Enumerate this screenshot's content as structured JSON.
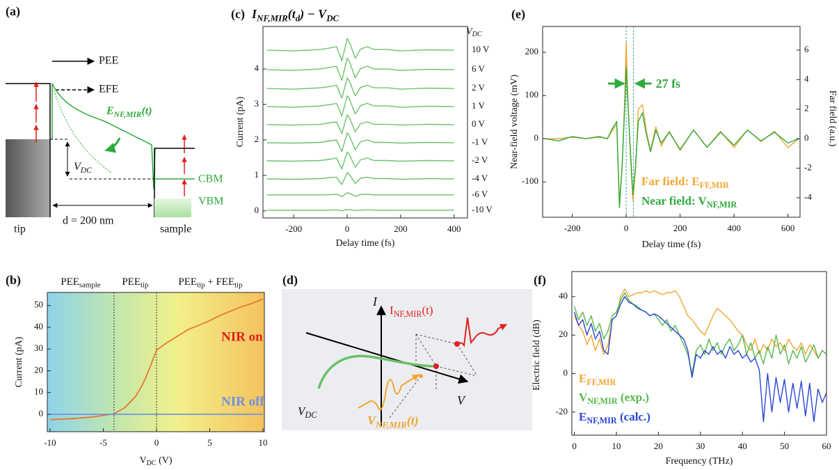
{
  "chart_data": [
    {
      "type": "line",
      "panel_label": "(b)",
      "regions": [
        [
          {
            "text": "PEE"
          },
          {
            "sub": "sample"
          }
        ],
        [
          {
            "text": "PEE"
          },
          {
            "sub": "tip"
          }
        ],
        [
          {
            "text": "PEE"
          },
          {
            "sub": "tip"
          },
          {
            "text": " + FEE"
          },
          {
            "sub": "tip"
          }
        ]
      ],
      "vlines": [
        -4,
        0
      ],
      "xlabel": [
        {
          "text": "V"
        },
        {
          "sub": "DC"
        },
        {
          "text": " (V)"
        }
      ],
      "ylabel": "Current (pA)",
      "x": [
        -10,
        -8,
        -6,
        -5,
        -4,
        -3,
        -2,
        -1.5,
        -1,
        -0.5,
        0,
        1,
        2,
        3,
        4,
        5,
        6,
        7,
        8,
        9,
        10
      ],
      "xlim": [
        -10.26,
        10.13
      ],
      "xticks": [
        -10,
        -5,
        0,
        5,
        10
      ],
      "ylim": [
        -8,
        56
      ],
      "yticks": [
        0,
        10,
        20,
        30,
        40,
        50
      ],
      "series": [
        {
          "name": "NIR on",
          "color": "#e8772e",
          "label_color": "#e0201b",
          "values": [
            -2.5,
            -2,
            -1.2,
            -0.5,
            0.2,
            3,
            8,
            12,
            17,
            23,
            29.5,
            33,
            36,
            39,
            41,
            43,
            45.5,
            47.5,
            49.5,
            51,
            53
          ]
        },
        {
          "name": "NIR off",
          "color": "#6f95e0",
          "label_color": "#6f8fe0",
          "values": [
            0,
            0,
            0,
            0,
            0,
            0,
            0,
            0,
            0,
            0,
            0,
            0,
            0,
            0,
            0,
            0,
            0,
            0,
            0,
            0,
            0
          ]
        }
      ]
    },
    {
      "type": "line",
      "panel_label": "(c)",
      "title": [
        {
          "text": "I"
        },
        {
          "sub": "NF,MIR"
        },
        {
          "text": "(t"
        },
        {
          "sub": "d"
        },
        {
          "text": ")  − V"
        },
        {
          "sub": "DC"
        }
      ],
      "xlabel": "Delay time (fs)",
      "ylabel": "Current (pA)",
      "legend_title": [
        {
          "text": "V"
        },
        {
          "sub": "DC"
        }
      ],
      "x": [
        -300,
        -200,
        -100,
        -60,
        -40,
        -20,
        0,
        10,
        30,
        50,
        75,
        100,
        150,
        200,
        300,
        400
      ],
      "xlim": [
        -315,
        450
      ],
      "xticks": [
        -200,
        0,
        200,
        400
      ],
      "ylim": [
        -0.2,
        5.2
      ],
      "yticks": [
        0,
        1,
        2,
        3,
        4
      ],
      "series": [
        {
          "name": "10 V",
          "color": "#6cc36a",
          "values": [
            4.53,
            4.51,
            4.55,
            4.6,
            4.63,
            4.23,
            4.86,
            4.73,
            4.3,
            4.56,
            4.63,
            4.55,
            4.55,
            4.51,
            4.54,
            4.53
          ]
        },
        {
          "name": "6 V",
          "color": "#6cc36a",
          "values": [
            3.98,
            3.96,
            4.0,
            4.05,
            4.08,
            3.68,
            4.31,
            4.18,
            3.75,
            4.01,
            4.08,
            4.0,
            4.0,
            3.96,
            3.99,
            3.98
          ]
        },
        {
          "name": "2 V",
          "color": "#6cc36a",
          "values": [
            3.45,
            3.43,
            3.47,
            3.51,
            3.54,
            3.18,
            3.75,
            3.63,
            3.24,
            3.48,
            3.54,
            3.47,
            3.47,
            3.43,
            3.46,
            3.45
          ]
        },
        {
          "name": "1 V",
          "color": "#6cc36a",
          "values": [
            2.94,
            2.92,
            2.96,
            3.0,
            3.03,
            2.67,
            3.24,
            3.12,
            2.73,
            2.97,
            3.03,
            2.96,
            2.96,
            2.92,
            2.95,
            2.94
          ]
        },
        {
          "name": "0 V",
          "color": "#6cc36a",
          "values": [
            2.43,
            2.42,
            2.44,
            2.49,
            2.51,
            2.18,
            2.71,
            2.6,
            2.23,
            2.46,
            2.51,
            2.44,
            2.44,
            2.42,
            2.44,
            2.43
          ]
        },
        {
          "name": "-1 V",
          "color": "#6cc36a",
          "values": [
            1.92,
            1.91,
            1.93,
            1.98,
            2.0,
            1.67,
            2.2,
            2.09,
            1.72,
            1.95,
            2.0,
            1.93,
            1.93,
            1.91,
            1.93,
            1.92
          ]
        },
        {
          "name": "-2 V",
          "color": "#6cc36a",
          "values": [
            1.41,
            1.4,
            1.42,
            1.46,
            1.49,
            1.18,
            1.66,
            1.56,
            1.23,
            1.44,
            1.49,
            1.42,
            1.42,
            1.4,
            1.42,
            1.41
          ]
        },
        {
          "name": "-4 V",
          "color": "#6cc36a",
          "values": [
            0.9,
            0.89,
            0.91,
            0.94,
            0.95,
            0.74,
            1.08,
            1.01,
            0.77,
            0.92,
            0.95,
            0.91,
            0.91,
            0.89,
            0.91,
            0.9
          ]
        },
        {
          "name": "-6 V",
          "color": "#6cc36a",
          "values": [
            0.45,
            0.45,
            0.45,
            0.46,
            0.47,
            0.4,
            0.51,
            0.49,
            0.41,
            0.46,
            0.47,
            0.45,
            0.45,
            0.45,
            0.45,
            0.45
          ]
        },
        {
          "name": "-10 V",
          "color": "#6cc36a",
          "values": [
            0.02,
            0.02,
            0.02,
            0.02,
            0.03,
            0,
            0.04,
            0.03,
            0.01,
            0.02,
            0.03,
            0.02,
            0.02,
            0.02,
            0.02,
            0.02
          ]
        }
      ]
    },
    {
      "type": "line",
      "panel_label": "(e)",
      "xlabel": "Delay time (fs)",
      "ylabel": "Near-field voltage (mV)",
      "y2label": "Far field (a.u.)",
      "vlines": [
        0,
        27
      ],
      "annotation": "27 fs",
      "x": [
        -300,
        -250,
        -200,
        -150,
        -100,
        -70,
        -50,
        -35,
        -25,
        -15,
        -5,
        0,
        5,
        15,
        25,
        35,
        45,
        60,
        75,
        90,
        110,
        130,
        160,
        200,
        250,
        300,
        350,
        400,
        450,
        500,
        550,
        600,
        640
      ],
      "xlim": [
        -310,
        645
      ],
      "xticks": [
        -200,
        0,
        200,
        400,
        600
      ],
      "ylim": [
        -182,
        260
      ],
      "yticks": [
        -100,
        0,
        100,
        200
      ],
      "y2lim": [
        -5.32,
        7.6
      ],
      "y2ticks": [
        -4,
        -2,
        0,
        2,
        4,
        6
      ],
      "series": [
        {
          "name": [
            {
              "text": "Far field: "
            },
            {
              "text": "E"
            },
            {
              "sub": "FF,MIR"
            }
          ],
          "color": "#f2a531",
          "axis": "y2",
          "values": [
            0,
            0,
            0.1,
            0,
            0.1,
            0,
            0.6,
            1.0,
            -4.2,
            -2,
            3,
            6.5,
            3.5,
            -1,
            -4.2,
            -2,
            2,
            2.3,
            0.5,
            -0.8,
            0.8,
            -0.5,
            0.5,
            -0.8,
            0.6,
            -0.6,
            0.5,
            -0.6,
            0.6,
            -0.2,
            0.5,
            -0.6,
            0
          ]
        },
        {
          "name": [
            {
              "text": "Near field: "
            },
            {
              "text": "V"
            },
            {
              "sub": "NF,MIR"
            }
          ],
          "color": "#2faa3c",
          "values": [
            0,
            -5,
            5,
            0,
            5,
            0,
            25,
            40,
            -160,
            -60,
            80,
            165,
            100,
            -20,
            -130,
            -60,
            40,
            60,
            10,
            -30,
            20,
            -10,
            15,
            -25,
            20,
            -20,
            15,
            -15,
            20,
            -5,
            15,
            -10,
            0
          ]
        }
      ]
    },
    {
      "type": "line",
      "panel_label": "(f)",
      "xlabel": "Frequency (THz)",
      "ylabel": "Electric field (dB)",
      "x": [
        0,
        1,
        2,
        3,
        4,
        5,
        6,
        7,
        8,
        9,
        10,
        11,
        12,
        13,
        14,
        15,
        16,
        17,
        18,
        19,
        20,
        21,
        22,
        23,
        24,
        25,
        26,
        27,
        28,
        29,
        30,
        31,
        32,
        33,
        34,
        35,
        36,
        37,
        38,
        39,
        40,
        41,
        42,
        43,
        44,
        45,
        46,
        47,
        48,
        49,
        50,
        51,
        52,
        53,
        54,
        55,
        56,
        57,
        58,
        59,
        60
      ],
      "xlim": [
        -0.6,
        60
      ],
      "xticks": [
        0,
        10,
        20,
        30,
        40,
        50,
        60
      ],
      "ylim": [
        -32,
        53
      ],
      "yticks": [
        -20,
        0,
        20,
        40
      ],
      "series": [
        {
          "name": [
            {
              "text": "E"
            },
            {
              "sub": "FF,MIR"
            }
          ],
          "color": "#f2a531",
          "values": [
            30,
            25,
            22,
            15,
            20,
            12,
            18,
            10,
            15,
            28,
            30,
            40,
            44,
            40,
            41,
            42,
            42,
            43,
            42,
            43,
            42,
            41,
            42,
            42,
            43,
            40,
            35,
            30,
            28,
            25,
            22,
            20,
            25,
            30,
            34,
            32,
            30,
            28,
            25,
            22,
            20,
            15,
            12,
            18,
            10,
            15,
            12,
            18,
            14,
            16,
            12,
            18,
            14,
            12,
            16,
            10,
            15,
            12,
            8,
            12,
            10
          ]
        },
        {
          "name": [
            {
              "text": "V"
            },
            {
              "sub": "NF,MIR"
            },
            {
              "text": " (exp.)"
            }
          ],
          "color": "#53b848",
          "values": [
            35,
            28,
            32,
            25,
            30,
            22,
            26,
            18,
            22,
            30,
            32,
            38,
            42,
            38,
            36,
            35,
            33,
            32,
            30,
            31,
            28,
            25,
            28,
            22,
            25,
            20,
            15,
            10,
            0,
            12,
            15,
            10,
            18,
            12,
            16,
            10,
            15,
            18,
            12,
            15,
            20,
            10,
            16,
            8,
            12,
            5,
            14,
            8,
            20,
            10,
            15,
            5,
            12,
            8,
            14,
            6,
            10,
            15,
            8,
            12,
            10
          ]
        },
        {
          "name": [
            {
              "text": "E"
            },
            {
              "sub": "NF,MIR"
            },
            {
              "text": " (calc.)"
            }
          ],
          "color": "#2a45d6",
          "values": [
            32,
            25,
            28,
            20,
            26,
            18,
            22,
            12,
            10,
            28,
            30,
            36,
            40,
            37,
            36,
            34,
            33,
            32,
            30,
            31,
            30,
            28,
            26,
            24,
            22,
            20,
            18,
            12,
            -2,
            10,
            8,
            12,
            10,
            14,
            10,
            12,
            8,
            14,
            10,
            12,
            8,
            10,
            6,
            8,
            2,
            -25,
            0,
            -20,
            -2,
            -15,
            -3,
            -20,
            -5,
            -18,
            -4,
            -22,
            -5,
            -25,
            -8,
            -15,
            -10
          ]
        }
      ]
    }
  ],
  "diagrams": {
    "a": {
      "panel_label": "(a)",
      "pee": "PEE",
      "efe": "EFE",
      "field": [
        {
          "text": "E"
        },
        {
          "sub": "NF,MIR"
        },
        {
          "text": "(t)"
        }
      ],
      "vdc": [
        {
          "text": "V"
        },
        {
          "sub": "DC"
        }
      ],
      "cbm": "CBM",
      "vbm": "VBM",
      "distance": "d = 200 nm",
      "tip": "tip",
      "sample": "sample"
    },
    "d": {
      "panel_label": "(d)",
      "i_axis": "I",
      "v_axis": "V",
      "current": [
        {
          "text": "I"
        },
        {
          "sub": "NF,MIR"
        },
        {
          "text": "(t)"
        }
      ],
      "vdc": [
        {
          "text": "V"
        },
        {
          "sub": "DC"
        }
      ],
      "voltage": [
        {
          "text": "V"
        },
        {
          "sub": "NF,MIR"
        },
        {
          "text": "(t)"
        }
      ]
    }
  }
}
